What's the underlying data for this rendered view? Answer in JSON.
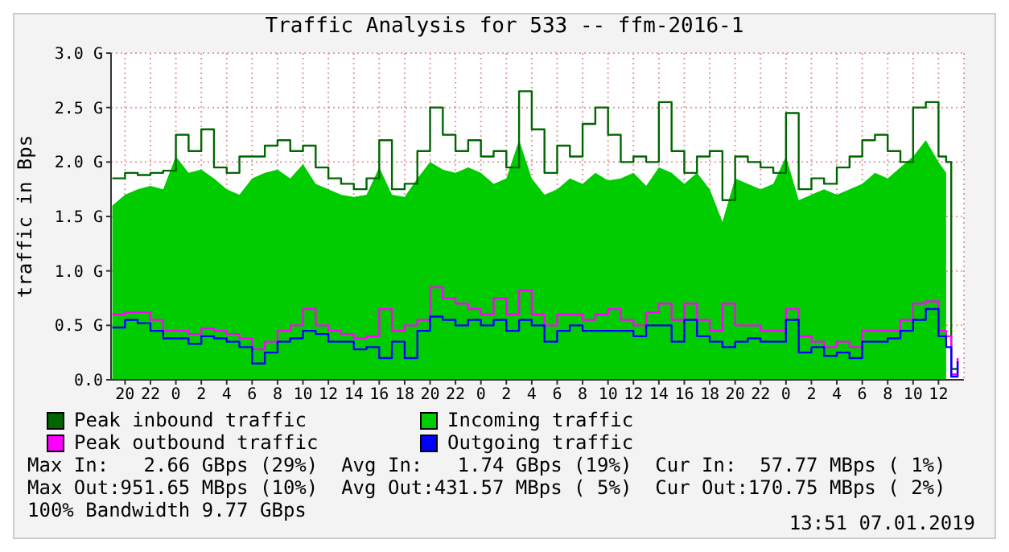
{
  "chart_data": {
    "type": "area",
    "title": "Traffic Analysis for 533 -- ffm-2016-1",
    "ylabel": "traffic in Bps",
    "x": [
      "2019-01-04T19:00",
      "2019-01-04T20:00",
      "2019-01-04T21:00",
      "2019-01-04T22:00",
      "2019-01-04T23:00",
      "2019-01-05T00:00",
      "2019-01-05T01:00",
      "2019-01-05T02:00",
      "2019-01-05T03:00",
      "2019-01-05T04:00",
      "2019-01-05T05:00",
      "2019-01-05T06:00",
      "2019-01-05T07:00",
      "2019-01-05T08:00",
      "2019-01-05T09:00",
      "2019-01-05T10:00",
      "2019-01-05T11:00",
      "2019-01-05T12:00",
      "2019-01-05T13:00",
      "2019-01-05T14:00",
      "2019-01-05T15:00",
      "2019-01-05T16:00",
      "2019-01-05T17:00",
      "2019-01-05T18:00",
      "2019-01-05T19:00",
      "2019-01-05T20:00",
      "2019-01-05T21:00",
      "2019-01-05T22:00",
      "2019-01-05T23:00",
      "2019-01-06T00:00",
      "2019-01-06T01:00",
      "2019-01-06T02:00",
      "2019-01-06T03:00",
      "2019-01-06T04:00",
      "2019-01-06T05:00",
      "2019-01-06T06:00",
      "2019-01-06T07:00",
      "2019-01-06T08:00",
      "2019-01-06T09:00",
      "2019-01-06T10:00",
      "2019-01-06T11:00",
      "2019-01-06T12:00",
      "2019-01-06T13:00",
      "2019-01-06T14:00",
      "2019-01-06T15:00",
      "2019-01-06T16:00",
      "2019-01-06T17:00",
      "2019-01-06T18:00",
      "2019-01-06T19:00",
      "2019-01-06T20:00",
      "2019-01-06T21:00",
      "2019-01-06T22:00",
      "2019-01-06T23:00",
      "2019-01-07T00:00",
      "2019-01-07T01:00",
      "2019-01-07T02:00",
      "2019-01-07T03:00",
      "2019-01-07T04:00",
      "2019-01-07T05:00",
      "2019-01-07T06:00",
      "2019-01-07T07:00",
      "2019-01-07T08:00",
      "2019-01-07T09:00",
      "2019-01-07T10:00",
      "2019-01-07T11:00",
      "2019-01-07T12:00",
      "2019-01-07T12:36",
      "2019-01-07T13:00",
      "2019-01-07T13:30"
    ],
    "series": [
      {
        "name": "Peak inbound traffic",
        "type": "step",
        "color": "#006600",
        "values": [
          1.85,
          1.9,
          1.88,
          1.9,
          1.92,
          2.25,
          2.1,
          2.3,
          1.95,
          1.9,
          2.05,
          2.05,
          2.15,
          2.2,
          2.1,
          2.15,
          1.95,
          1.85,
          1.8,
          1.75,
          1.85,
          2.2,
          1.75,
          1.8,
          2.1,
          2.5,
          2.25,
          2.1,
          2.2,
          2.05,
          2.1,
          1.95,
          2.65,
          2.3,
          1.9,
          2.15,
          2.05,
          2.35,
          2.5,
          2.25,
          2.0,
          2.05,
          2.0,
          2.55,
          2.1,
          1.9,
          2.05,
          2.1,
          1.65,
          2.05,
          2.0,
          1.95,
          1.9,
          2.45,
          1.75,
          1.85,
          1.8,
          1.95,
          2.05,
          2.2,
          2.25,
          2.1,
          2.0,
          2.5,
          2.55,
          2.05,
          2.0,
          0.1,
          0.1
        ]
      },
      {
        "name": "Incoming traffic",
        "color": "#00cc00",
        "values": [
          1.6,
          1.7,
          1.75,
          1.78,
          1.75,
          2.05,
          1.9,
          1.93,
          1.85,
          1.75,
          1.7,
          1.85,
          1.9,
          1.93,
          1.85,
          1.98,
          1.8,
          1.75,
          1.7,
          1.68,
          1.7,
          1.95,
          1.7,
          1.68,
          1.85,
          2.0,
          1.93,
          1.9,
          1.95,
          1.9,
          1.8,
          1.85,
          2.2,
          1.85,
          1.7,
          1.75,
          1.85,
          1.8,
          1.9,
          1.83,
          1.85,
          1.9,
          1.78,
          1.95,
          1.9,
          1.8,
          1.9,
          1.75,
          1.45,
          1.85,
          1.8,
          1.75,
          1.8,
          2.05,
          1.65,
          1.7,
          1.75,
          1.7,
          1.75,
          1.8,
          1.9,
          1.85,
          1.95,
          2.05,
          2.2,
          2.0,
          1.9,
          null,
          null
        ]
      },
      {
        "name": "Peak outbound traffic",
        "type": "step",
        "color": "#ff00ff",
        "values": [
          0.6,
          0.62,
          0.62,
          0.55,
          0.45,
          0.45,
          0.42,
          0.47,
          0.45,
          0.42,
          0.38,
          0.28,
          0.35,
          0.45,
          0.5,
          0.65,
          0.5,
          0.45,
          0.42,
          0.38,
          0.4,
          0.65,
          0.45,
          0.5,
          0.55,
          0.85,
          0.75,
          0.7,
          0.65,
          0.6,
          0.75,
          0.6,
          0.82,
          0.6,
          0.5,
          0.6,
          0.6,
          0.55,
          0.6,
          0.65,
          0.55,
          0.5,
          0.62,
          0.7,
          0.55,
          0.7,
          0.55,
          0.45,
          0.7,
          0.5,
          0.5,
          0.45,
          0.45,
          0.65,
          0.4,
          0.35,
          0.3,
          0.35,
          0.3,
          0.45,
          0.45,
          0.45,
          0.55,
          0.7,
          0.72,
          0.45,
          0.4,
          0.05,
          0.2
        ]
      },
      {
        "name": "Outgoing traffic",
        "type": "step",
        "color": "#0000ff",
        "values": [
          0.48,
          0.55,
          0.52,
          0.45,
          0.38,
          0.38,
          0.33,
          0.4,
          0.38,
          0.35,
          0.3,
          0.15,
          0.25,
          0.35,
          0.38,
          0.45,
          0.42,
          0.35,
          0.35,
          0.28,
          0.3,
          0.2,
          0.35,
          0.2,
          0.45,
          0.58,
          0.55,
          0.5,
          0.55,
          0.5,
          0.55,
          0.45,
          0.55,
          0.5,
          0.35,
          0.45,
          0.5,
          0.45,
          0.45,
          0.45,
          0.45,
          0.4,
          0.5,
          0.5,
          0.35,
          0.55,
          0.4,
          0.35,
          0.3,
          0.35,
          0.38,
          0.35,
          0.35,
          0.55,
          0.25,
          0.3,
          0.22,
          0.25,
          0.2,
          0.35,
          0.35,
          0.38,
          0.45,
          0.55,
          0.65,
          0.4,
          0.3,
          0.03,
          0.17
        ]
      }
    ],
    "xlim": [
      "2019-01-04T18:54",
      "2019-01-07T14:00"
    ],
    "xticks": [
      {
        "value": "2019-01-04T20:00",
        "label": "20"
      },
      {
        "value": "2019-01-04T22:00",
        "label": "22"
      },
      {
        "value": "2019-01-05T00:00",
        "label": "0"
      },
      {
        "value": "2019-01-05T02:00",
        "label": "2"
      },
      {
        "value": "2019-01-05T04:00",
        "label": "4"
      },
      {
        "value": "2019-01-05T06:00",
        "label": "6"
      },
      {
        "value": "2019-01-05T08:00",
        "label": "8"
      },
      {
        "value": "2019-01-05T10:00",
        "label": "10"
      },
      {
        "value": "2019-01-05T12:00",
        "label": "12"
      },
      {
        "value": "2019-01-05T14:00",
        "label": "14"
      },
      {
        "value": "2019-01-05T16:00",
        "label": "16"
      },
      {
        "value": "2019-01-05T18:00",
        "label": "18"
      },
      {
        "value": "2019-01-05T20:00",
        "label": "20"
      },
      {
        "value": "2019-01-05T22:00",
        "label": "22"
      },
      {
        "value": "2019-01-06T00:00",
        "label": "0"
      },
      {
        "value": "2019-01-06T02:00",
        "label": "2"
      },
      {
        "value": "2019-01-06T04:00",
        "label": "4"
      },
      {
        "value": "2019-01-06T06:00",
        "label": "6"
      },
      {
        "value": "2019-01-06T08:00",
        "label": "8"
      },
      {
        "value": "2019-01-06T10:00",
        "label": "10"
      },
      {
        "value": "2019-01-06T12:00",
        "label": "12"
      },
      {
        "value": "2019-01-06T14:00",
        "label": "14"
      },
      {
        "value": "2019-01-06T16:00",
        "label": "16"
      },
      {
        "value": "2019-01-06T18:00",
        "label": "18"
      },
      {
        "value": "2019-01-06T20:00",
        "label": "20"
      },
      {
        "value": "2019-01-06T22:00",
        "label": "22"
      },
      {
        "value": "2019-01-07T00:00",
        "label": "0"
      },
      {
        "value": "2019-01-07T02:00",
        "label": "2"
      },
      {
        "value": "2019-01-07T04:00",
        "label": "4"
      },
      {
        "value": "2019-01-07T06:00",
        "label": "6"
      },
      {
        "value": "2019-01-07T08:00",
        "label": "8"
      },
      {
        "value": "2019-01-07T10:00",
        "label": "10"
      },
      {
        "value": "2019-01-07T12:00",
        "label": "12"
      }
    ],
    "ylim": [
      0,
      3
    ],
    "yticks": [
      {
        "value": 0,
        "label": "0.0"
      },
      {
        "value": 0.5,
        "label": "0.5 G"
      },
      {
        "value": 1,
        "label": "1.0 G"
      },
      {
        "value": 1.5,
        "label": "1.5 G"
      },
      {
        "value": 2,
        "label": "2.0 G"
      },
      {
        "value": 2.5,
        "label": "2.5 G"
      },
      {
        "value": 3,
        "label": "3.0 G"
      }
    ],
    "grid": true,
    "legend": "bottom",
    "annotations": [
      "Max In:   2.66 GBps (29%)  Avg In:   1.74 GBps (19%)  Cur In:  57.77 MBps ( 1%)",
      "Max Out:951.65 MBps (10%)  Avg Out:431.57 MBps ( 5%)  Cur Out:170.75 MBps ( 2%)",
      "100% Bandwidth 9.77 GBps",
      "13:51 07.01.2019"
    ]
  }
}
